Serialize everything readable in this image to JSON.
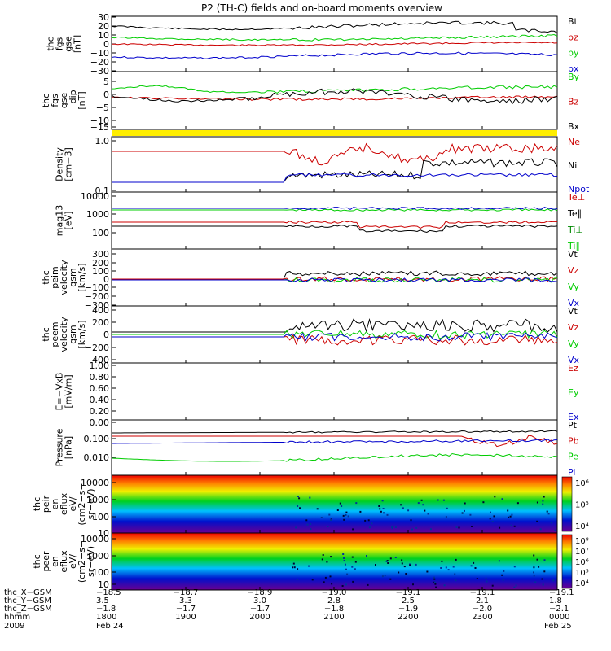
{
  "title": "P2 (TH-C) fields and on-board moments overview",
  "panels": [
    {
      "id": "fgs-b",
      "ylabel": [
        "thc",
        "fgs",
        "gse",
        "[nT]"
      ],
      "ticks": [
        "30",
        "20",
        "10",
        "0",
        "−10",
        "−20",
        "−30"
      ],
      "legend": [
        {
          "text": "Bt",
          "color": "#000000"
        },
        {
          "text": "bz",
          "color": "#cc0000"
        },
        {
          "text": "by",
          "color": "#00cc00"
        },
        {
          "text": "bx",
          "color": "#0000cc"
        }
      ]
    },
    {
      "id": "fgs-e",
      "ylabel": [
        "thc",
        "fgs",
        "gse",
        "−dip",
        "[nT]"
      ],
      "ticks": [
        "5",
        "0",
        "−5",
        "−10",
        "−15"
      ],
      "legend": [
        {
          "text": "By",
          "color": "#00cc00"
        },
        {
          "text": "Bz",
          "color": "#cc0000"
        },
        {
          "text": "Bx",
          "color": "#000000"
        }
      ]
    },
    {
      "id": "density",
      "ylabel": [
        "Density",
        "[cm−3]"
      ],
      "ticks": [
        "1.0",
        "0.1"
      ],
      "legend": [
        {
          "text": "Ne",
          "color": "#cc0000"
        },
        {
          "text": "Ni",
          "color": "#000000"
        },
        {
          "text": "Npot",
          "color": "#0000cc"
        }
      ]
    },
    {
      "id": "temp",
      "ylabel": [
        "mag13",
        "[eV]"
      ],
      "ticks": [
        "10000",
        "1000",
        "100"
      ],
      "legend": [
        {
          "text": "Te⊥",
          "color": "#cc0000"
        },
        {
          "text": "Te∥",
          "color": "#000000"
        },
        {
          "text": "Ti⊥",
          "color": "#008800"
        },
        {
          "text": "Ti∥",
          "color": "#00cc00"
        }
      ]
    },
    {
      "id": "peim",
      "ylabel": [
        "thc",
        "peim",
        "velocity",
        "gsm",
        "[km/s]"
      ],
      "ticks": [
        "300",
        "200",
        "100",
        "0",
        "−100",
        "−200",
        "−300"
      ],
      "legend": [
        {
          "text": "Vt",
          "color": "#000000"
        },
        {
          "text": "Vz",
          "color": "#cc0000"
        },
        {
          "text": "Vy",
          "color": "#00cc00"
        },
        {
          "text": "Vx",
          "color": "#0000cc"
        }
      ]
    },
    {
      "id": "peem",
      "ylabel": [
        "thc",
        "peem",
        "velocity",
        "gsm",
        "[km/s]"
      ],
      "ticks": [
        "400",
        "200",
        "0",
        "−200",
        "−400"
      ],
      "legend": [
        {
          "text": "Vt",
          "color": "#000000"
        },
        {
          "text": "Vz",
          "color": "#cc0000"
        },
        {
          "text": "Vy",
          "color": "#00cc00"
        },
        {
          "text": "Vx",
          "color": "#0000cc"
        }
      ]
    },
    {
      "id": "efield",
      "ylabel": [
        "E=−VxB",
        "[mV/m]"
      ],
      "ticks": [
        "1.00",
        "0.80",
        "0.60",
        "0.40",
        "0.20",
        "0.00"
      ],
      "legend": [
        {
          "text": "Ez",
          "color": "#cc0000"
        },
        {
          "text": "Ey",
          "color": "#00cc00"
        },
        {
          "text": "Ex",
          "color": "#0000cc"
        }
      ]
    },
    {
      "id": "pressure",
      "ylabel": [
        "Pressure",
        "[nPa]"
      ],
      "ticks": [
        "0.100",
        "0.010"
      ],
      "legend": [
        {
          "text": "Pt",
          "color": "#000000"
        },
        {
          "text": "Pb",
          "color": "#cc0000"
        },
        {
          "text": "Pe",
          "color": "#00cc00"
        },
        {
          "text": "Pi",
          "color": "#0000cc"
        }
      ]
    },
    {
      "id": "peir",
      "ylabel": [
        "thc",
        "peir",
        "en",
        "eflux",
        "eV/",
        "(cm2−s−",
        "sr−eV)"
      ],
      "ticks": [
        "10000",
        "1000",
        "100",
        "10"
      ],
      "colorbar": [
        "10⁶",
        "10⁵",
        "10⁴"
      ]
    },
    {
      "id": "peer",
      "ylabel": [
        "thc",
        "peer",
        "en",
        "eflux",
        "eV/",
        "(cm2−s−",
        "sr−eV)"
      ],
      "ticks": [
        "10000",
        "1000",
        "100",
        "10"
      ],
      "colorbar": [
        "10⁸",
        "10⁷",
        "10⁶",
        "10⁵",
        "10⁴"
      ]
    }
  ],
  "axis": {
    "rows": [
      {
        "label": "thc_X−GSM",
        "values": [
          "−18.5",
          "−18.7",
          "−18.9",
          "−19.0",
          "−19.1",
          "−19.1",
          "−19.1"
        ]
      },
      {
        "label": "thc_Y−GSM",
        "values": [
          "3.5",
          "3.3",
          "3.0",
          "2.8",
          "2.5",
          "2.1",
          "1.8"
        ]
      },
      {
        "label": "thc_Z−GSM",
        "values": [
          "−1.8",
          "−1.7",
          "−1.7",
          "−1.8",
          "−1.9",
          "−2.0",
          "−2.1"
        ]
      },
      {
        "label": "hhmm",
        "values": [
          "1800",
          "1900",
          "2000",
          "2100",
          "2200",
          "2300",
          "0000"
        ]
      }
    ],
    "year": "2009",
    "date_start": "Feb 24",
    "date_end": "Feb 25"
  }
}
